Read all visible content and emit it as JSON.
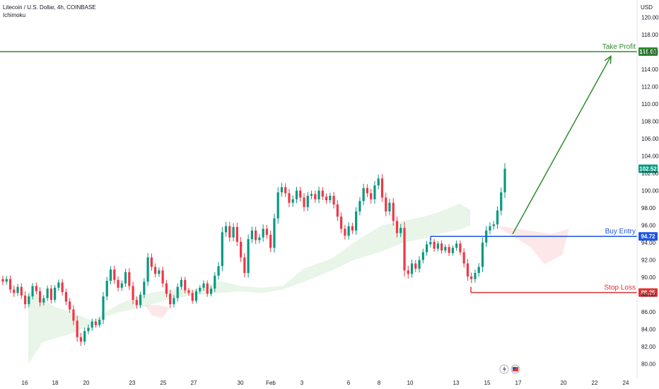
{
  "header": {
    "symbol_line": "Litecoin / U.S. Dollar, 4h, COINBASE",
    "indicator": "Ichimoku"
  },
  "currency": "USD",
  "chart_data": {
    "type": "candlestick",
    "ylim": [
      79,
      121
    ],
    "y_ticks": [
      80,
      82,
      84,
      86,
      88,
      90,
      92,
      94,
      96,
      98,
      100,
      102,
      104,
      106,
      108,
      110,
      112,
      114,
      116,
      118,
      120
    ],
    "x_ticks": [
      "16",
      "18",
      "20",
      "23",
      "25",
      "27",
      "30",
      "Feb",
      "3",
      "6",
      "8",
      "10",
      "13",
      "15",
      "17",
      "20",
      "22",
      "24"
    ],
    "price_tag": "102.52",
    "levels": [
      {
        "name": "Take Profit",
        "value": 116.03,
        "label": "116.03",
        "color": "#2e8b2e"
      },
      {
        "name": "Buy Entry",
        "value": 94.72,
        "label": "94.72",
        "color": "#1e53e5"
      },
      {
        "name": "Stop Loss",
        "value": 88.25,
        "label": "88.25",
        "color": "#e03030"
      }
    ],
    "arrow": {
      "from_label": "Feb 15",
      "from_value": 95.0,
      "to_label": "Feb 21",
      "to_value": 115.5
    },
    "candles_close_path": [
      [
        89.5,
        0.4
      ],
      [
        89.8,
        0.35
      ],
      [
        88.6,
        0.4
      ],
      [
        88.2,
        0.45
      ],
      [
        88.9,
        0.35
      ],
      [
        87.9,
        0.4
      ],
      [
        86.9,
        0.5
      ],
      [
        87.8,
        0.35
      ],
      [
        89.0,
        0.35
      ],
      [
        88.4,
        0.4
      ],
      [
        87.1,
        0.45
      ],
      [
        87.6,
        0.35
      ],
      [
        88.7,
        0.35
      ],
      [
        87.4,
        0.4
      ],
      [
        88.8,
        0.3
      ],
      [
        89.4,
        0.35
      ],
      [
        88.3,
        0.4
      ],
      [
        87.2,
        0.4
      ],
      [
        86.3,
        0.4
      ],
      [
        85.0,
        0.5
      ],
      [
        83.1,
        0.55
      ],
      [
        82.6,
        0.5
      ],
      [
        83.8,
        0.4
      ],
      [
        84.2,
        0.35
      ],
      [
        84.9,
        0.35
      ],
      [
        84.5,
        0.3
      ],
      [
        85.1,
        0.3
      ],
      [
        87.8,
        0.5
      ],
      [
        89.6,
        0.45
      ],
      [
        90.9,
        0.4
      ],
      [
        89.7,
        0.45
      ],
      [
        88.8,
        0.4
      ],
      [
        89.3,
        0.35
      ],
      [
        90.6,
        0.4
      ],
      [
        89.0,
        0.45
      ],
      [
        87.4,
        0.5
      ],
      [
        86.8,
        0.4
      ],
      [
        88.0,
        0.35
      ],
      [
        89.5,
        0.4
      ],
      [
        92.3,
        0.5
      ],
      [
        91.2,
        0.45
      ],
      [
        90.4,
        0.4
      ],
      [
        90.8,
        0.35
      ],
      [
        89.3,
        0.45
      ],
      [
        88.1,
        0.4
      ],
      [
        86.9,
        0.45
      ],
      [
        87.6,
        0.35
      ],
      [
        88.9,
        0.4
      ],
      [
        89.7,
        0.35
      ],
      [
        88.5,
        0.35
      ],
      [
        88.2,
        0.3
      ],
      [
        87.3,
        0.35
      ],
      [
        88.4,
        0.3
      ],
      [
        88.8,
        0.3
      ],
      [
        89.3,
        0.35
      ],
      [
        88.1,
        0.35
      ],
      [
        88.7,
        0.3
      ],
      [
        90.2,
        0.4
      ],
      [
        91.3,
        0.45
      ],
      [
        95.2,
        0.6
      ],
      [
        95.9,
        0.5
      ],
      [
        94.6,
        0.5
      ],
      [
        95.8,
        0.45
      ],
      [
        94.1,
        0.5
      ],
      [
        92.3,
        0.55
      ],
      [
        90.5,
        0.5
      ],
      [
        94.4,
        0.55
      ],
      [
        95.4,
        0.45
      ],
      [
        94.3,
        0.45
      ],
      [
        94.6,
        0.4
      ],
      [
        95.6,
        0.5
      ],
      [
        94.9,
        0.45
      ],
      [
        93.4,
        0.5
      ],
      [
        96.8,
        0.55
      ],
      [
        99.8,
        0.6
      ],
      [
        100.4,
        0.5
      ],
      [
        99.7,
        0.45
      ],
      [
        98.6,
        0.5
      ],
      [
        99.0,
        0.45
      ],
      [
        100.0,
        0.45
      ],
      [
        99.2,
        0.45
      ],
      [
        98.1,
        0.5
      ],
      [
        99.4,
        0.45
      ],
      [
        99.6,
        0.4
      ],
      [
        99.0,
        0.4
      ],
      [
        100.0,
        0.45
      ],
      [
        99.3,
        0.4
      ],
      [
        98.9,
        0.4
      ],
      [
        99.4,
        0.35
      ],
      [
        98.4,
        0.45
      ],
      [
        97.0,
        0.5
      ],
      [
        95.6,
        0.5
      ],
      [
        94.8,
        0.45
      ],
      [
        95.9,
        0.45
      ],
      [
        95.4,
        0.4
      ],
      [
        97.6,
        0.5
      ],
      [
        98.8,
        0.45
      ],
      [
        100.3,
        0.5
      ],
      [
        99.7,
        0.45
      ],
      [
        99.0,
        0.5
      ],
      [
        100.6,
        0.5
      ],
      [
        101.4,
        0.45
      ],
      [
        99.2,
        0.5
      ],
      [
        97.6,
        0.55
      ],
      [
        98.6,
        0.45
      ],
      [
        96.5,
        0.55
      ],
      [
        95.1,
        0.5
      ],
      [
        95.7,
        0.45
      ],
      [
        90.8,
        0.7
      ],
      [
        90.4,
        0.55
      ],
      [
        91.6,
        0.45
      ],
      [
        91.0,
        0.4
      ],
      [
        92.0,
        0.45
      ],
      [
        92.9,
        0.4
      ],
      [
        93.8,
        0.4
      ],
      [
        94.1,
        0.35
      ],
      [
        93.3,
        0.35
      ],
      [
        93.9,
        0.3
      ],
      [
        93.1,
        0.35
      ],
      [
        93.5,
        0.3
      ],
      [
        92.8,
        0.35
      ],
      [
        93.4,
        0.3
      ],
      [
        93.9,
        0.35
      ],
      [
        92.9,
        0.35
      ],
      [
        91.6,
        0.45
      ],
      [
        90.1,
        0.5
      ],
      [
        89.8,
        0.45
      ],
      [
        90.5,
        0.4
      ],
      [
        91.2,
        0.45
      ],
      [
        94.0,
        0.6
      ],
      [
        95.4,
        0.5
      ],
      [
        95.9,
        0.45
      ],
      [
        96.1,
        0.4
      ],
      [
        97.7,
        0.5
      ],
      [
        99.8,
        0.55
      ],
      [
        102.52,
        0.65
      ]
    ]
  }
}
